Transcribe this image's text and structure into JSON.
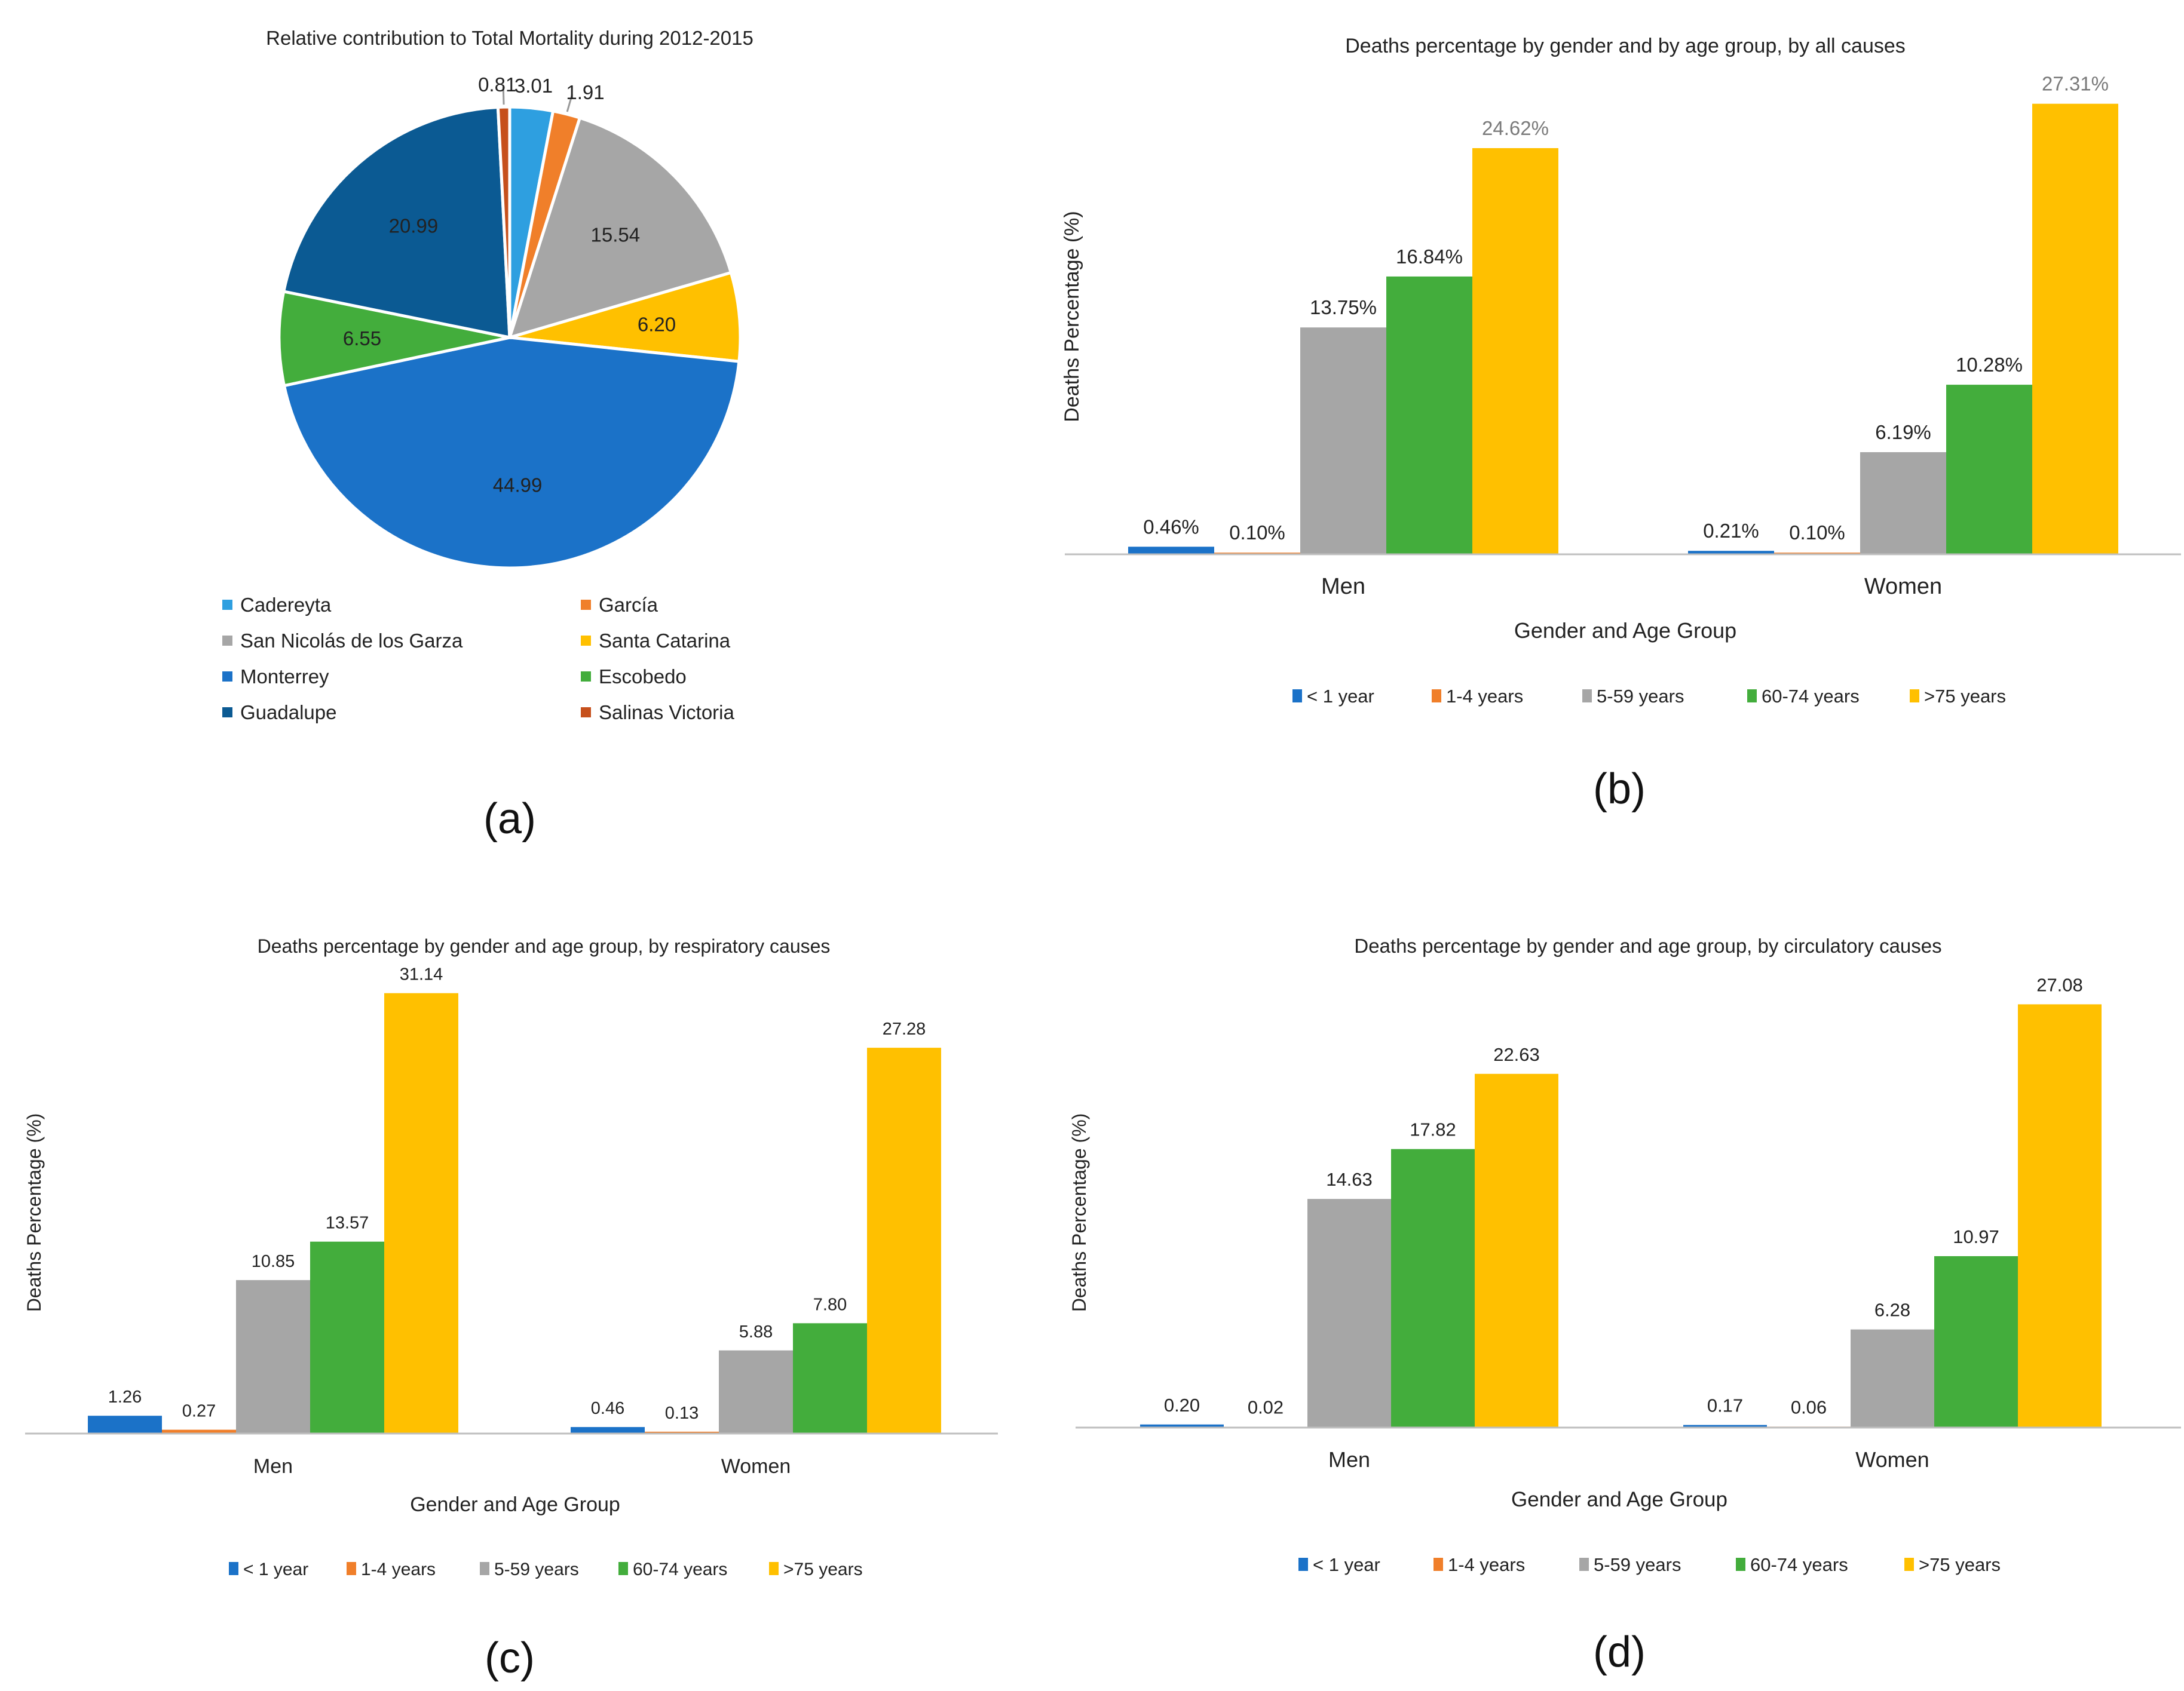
{
  "panels": {
    "a": {
      "label": "(a)"
    },
    "b": {
      "label": "(b)"
    },
    "c": {
      "label": "(c)"
    },
    "d": {
      "label": "(d)"
    }
  },
  "chart_data": [
    {
      "type": "pie",
      "title": "Relative contribution to Total Mortality during 2012-2015",
      "slices": [
        {
          "name": "Cadereyta",
          "value": 3.01,
          "label": "3.01",
          "color": "#2e9fe0"
        },
        {
          "name": "García",
          "value": 1.91,
          "label": "1.91",
          "color": "#f07f2a"
        },
        {
          "name": "San Nicolás de los Garza",
          "value": 15.54,
          "label": "15.54",
          "color": "#a6a6a6"
        },
        {
          "name": "Santa Catarina",
          "value": 6.2,
          "label": "6.20",
          "color": "#ffc000"
        },
        {
          "name": "Monterrey",
          "value": 44.99,
          "label": "44.99",
          "color": "#1b72c8"
        },
        {
          "name": "Escobedo",
          "value": 6.55,
          "label": "6.55",
          "color": "#43ad3c"
        },
        {
          "name": "Guadalupe",
          "value": 20.99,
          "label": "20.99",
          "color": "#0b5a93"
        },
        {
          "name": "Salinas Victoria",
          "value": 0.81,
          "label": "0.81",
          "color": "#c6501c"
        }
      ],
      "legend_order": [
        "Cadereyta",
        "García",
        "San Nicolás de los Garza",
        "Santa Catarina",
        "Monterrey",
        "Escobedo",
        "Guadalupe",
        "Salinas Victoria"
      ],
      "legend_position": "bottom"
    },
    {
      "type": "bar",
      "title": "Deaths percentage by gender and by age group, by all causes",
      "xlabel": "Gender and Age Group",
      "ylabel": "Deaths Percentage (%)",
      "categories": [
        "Men",
        "Women"
      ],
      "ylim": [
        0,
        29
      ],
      "series": [
        {
          "name": "< 1 year",
          "color": "#1b72c8",
          "values": [
            0.46,
            0.21
          ],
          "labels": [
            "0.46%",
            "0.21%"
          ]
        },
        {
          "name": "1-4 years",
          "color": "#f07f2a",
          "values": [
            0.1,
            0.1
          ],
          "labels": [
            "0.10%",
            "0.10%"
          ]
        },
        {
          "name": "5-59 years",
          "color": "#a6a6a6",
          "values": [
            13.75,
            6.19
          ],
          "labels": [
            "13.75%",
            "6.19%"
          ]
        },
        {
          "name": "60-74 years",
          "color": "#43ad3c",
          "values": [
            16.84,
            10.28
          ],
          "labels": [
            "16.84%",
            "10.28%"
          ]
        },
        {
          "name": ">75 years",
          "color": "#ffc000",
          "values": [
            24.62,
            27.31
          ],
          "labels": [
            "24.62%",
            "27.31%"
          ]
        }
      ],
      "legend_position": "bottom",
      "grid": false
    },
    {
      "type": "bar",
      "title": "Deaths percentage by gender and age group, by respiratory causes",
      "xlabel": "Gender and Age Group",
      "ylabel": "Deaths Percentage (%)",
      "categories": [
        "Men",
        "Women"
      ],
      "ylim": [
        0,
        34
      ],
      "series": [
        {
          "name": "< 1 year",
          "color": "#1b72c8",
          "values": [
            1.26,
            0.46
          ],
          "labels": [
            "1.26",
            "0.46"
          ]
        },
        {
          "name": "1-4 years",
          "color": "#f07f2a",
          "values": [
            0.27,
            0.13
          ],
          "labels": [
            "0.27",
            "0.13"
          ]
        },
        {
          "name": "5-59 years",
          "color": "#a6a6a6",
          "values": [
            10.85,
            5.88
          ],
          "labels": [
            "10.85",
            "5.88"
          ]
        },
        {
          "name": "60-74 years",
          "color": "#43ad3c",
          "values": [
            13.57,
            7.8
          ],
          "labels": [
            "13.57",
            "7.80"
          ]
        },
        {
          "name": ">75 years",
          "color": "#ffc000",
          "values": [
            31.14,
            27.28
          ],
          "labels": [
            "31.14",
            "27.28"
          ]
        }
      ],
      "legend_position": "bottom",
      "grid": false
    },
    {
      "type": "bar",
      "title": "Deaths percentage by gender and age group, by circulatory causes",
      "xlabel": "Gender and Age Group",
      "ylabel": "Deaths Percentage (%)",
      "categories": [
        "Men",
        "Women"
      ],
      "ylim": [
        0,
        30
      ],
      "series": [
        {
          "name": "< 1 year",
          "color": "#1b72c8",
          "values": [
            0.2,
            0.17
          ],
          "labels": [
            "0.20",
            "0.17"
          ]
        },
        {
          "name": "1-4 years",
          "color": "#f07f2a",
          "values": [
            0.02,
            0.06
          ],
          "labels": [
            "0.02",
            "0.06"
          ]
        },
        {
          "name": "5-59 years",
          "color": "#a6a6a6",
          "values": [
            14.63,
            6.28
          ],
          "labels": [
            "14.63",
            "6.28"
          ]
        },
        {
          "name": "60-74 years",
          "color": "#43ad3c",
          "values": [
            17.82,
            10.97
          ],
          "labels": [
            "17.82",
            "10.97"
          ]
        },
        {
          "name": ">75 years",
          "color": "#ffc000",
          "values": [
            22.63,
            27.08
          ],
          "labels": [
            "22.63",
            "27.08"
          ]
        }
      ],
      "legend_position": "bottom",
      "grid": false
    }
  ]
}
